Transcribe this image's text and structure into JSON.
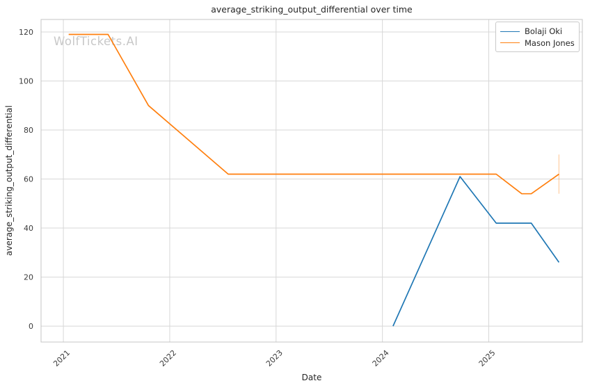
{
  "figure": {
    "title": "average_striking_output_differential over time",
    "watermark": "WolfTickets.AI",
    "xlabel": "Date",
    "ylabel": "average_striking_output_differential",
    "legend": {
      "position": "upper-right",
      "items": [
        {
          "label": "Bolaji Oki",
          "color": "#1f77b4"
        },
        {
          "label": "Mason Jones",
          "color": "#ff7f0e"
        }
      ]
    },
    "colors": {
      "background": "#ffffff",
      "grid": "#d7d7d7",
      "frame": "#c4c4c4",
      "title_text": "#262626",
      "tick_text": "#3b3b3b",
      "watermark_text": "#c8c8c8",
      "series_blue": "#1f77b4",
      "series_orange": "#ff7f0e"
    }
  },
  "chart_data": {
    "type": "line",
    "title": "average_striking_output_differential over time",
    "xlabel": "Date",
    "ylabel": "average_striking_output_differential",
    "grid": true,
    "legend_position": "upper right",
    "x_axis": {
      "unit": "decimal_year",
      "ticks": [
        2021,
        2022,
        2023,
        2024,
        2025
      ],
      "tick_rotation_deg": 45,
      "range": [
        2020.79,
        2025.88
      ]
    },
    "y_axis": {
      "ticks": [
        0,
        20,
        40,
        60,
        80,
        100,
        120
      ],
      "range": [
        -6.5,
        125.1
      ]
    },
    "series": [
      {
        "name": "Bolaji Oki",
        "color": "#1f77b4",
        "points": [
          [
            2024.1,
            0
          ],
          [
            2024.73,
            61
          ],
          [
            2025.07,
            42
          ],
          [
            2025.4,
            42
          ],
          [
            2025.66,
            26
          ]
        ]
      },
      {
        "name": "Mason Jones",
        "color": "#ff7f0e",
        "points": [
          [
            2021.05,
            119
          ],
          [
            2021.42,
            119
          ],
          [
            2021.8,
            90
          ],
          [
            2022.55,
            62
          ],
          [
            2025.07,
            62
          ],
          [
            2025.31,
            54
          ],
          [
            2025.4,
            54
          ],
          [
            2025.66,
            62
          ]
        ],
        "error_bars": [
          {
            "x": 2025.66,
            "y_low": 54,
            "y_high": 70
          }
        ]
      }
    ]
  }
}
